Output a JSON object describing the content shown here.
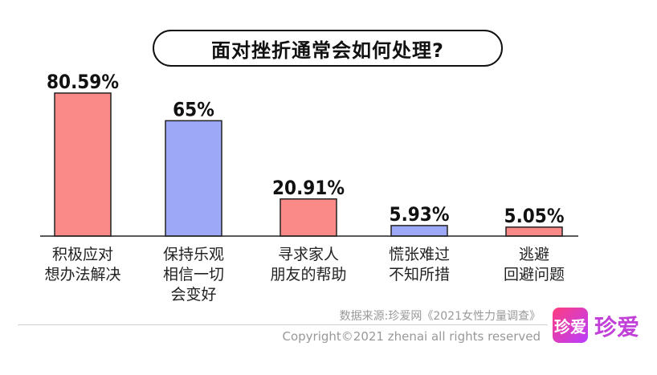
{
  "chart_data": {
    "type": "bar",
    "title": "面对挫折通常会如何处理?",
    "categories": [
      [
        "积极应对",
        "想办法解决"
      ],
      [
        "保持乐观",
        "相信一切",
        "会变好"
      ],
      [
        "寻求家人",
        "朋友的帮助"
      ],
      [
        "慌张难过",
        "不知所措"
      ],
      [
        "逃避",
        "回避问题"
      ]
    ],
    "values": [
      80.59,
      65,
      20.91,
      5.93,
      5.05
    ],
    "data_labels": [
      "80.59%",
      "65%",
      "20.91%",
      "5.93%",
      "5.05%"
    ],
    "colors": [
      "#fa8a87",
      "#9da8f7",
      "#fa8a87",
      "#9da8f7",
      "#fa8a87"
    ],
    "ylim": [
      0,
      100
    ],
    "grid": false,
    "xlabel": "",
    "ylabel": ""
  },
  "footer": {
    "source": "数据来源:珍爱网《2021女性力量调查》",
    "copyright": "Copyright©2021  zhenai  all rights reserved"
  },
  "logo": {
    "icon_text": "珍爱",
    "text": "珍爱",
    "colors": [
      "#ff3d7f",
      "#b83dff"
    ]
  }
}
